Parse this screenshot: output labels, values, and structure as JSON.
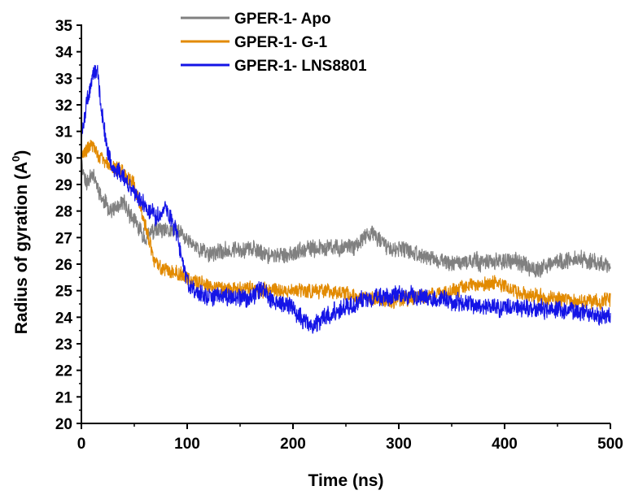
{
  "chart_data": {
    "type": "line",
    "title": "",
    "xlabel": "Time (ns)",
    "ylabel_main": "Radius of gyration (A",
    "ylabel_sup": "0",
    "ylabel_close": ")",
    "xlim": [
      0,
      500
    ],
    "ylim": [
      20,
      35
    ],
    "xticks": [
      0,
      100,
      200,
      300,
      400,
      500
    ],
    "yticks": [
      20,
      21,
      22,
      23,
      24,
      25,
      26,
      27,
      28,
      29,
      30,
      31,
      32,
      33,
      34,
      35
    ],
    "legend_position": "top-center",
    "series": [
      {
        "name": "GPER-1- Apo",
        "color": "#808080",
        "noise": 0.28,
        "seed": 11,
        "points": [
          [
            0,
            29.8
          ],
          [
            5,
            29.0
          ],
          [
            10,
            29.5
          ],
          [
            20,
            28.4
          ],
          [
            30,
            28.0
          ],
          [
            40,
            28.3
          ],
          [
            50,
            27.6
          ],
          [
            60,
            27.0
          ],
          [
            70,
            27.3
          ],
          [
            80,
            27.2
          ],
          [
            90,
            27.3
          ],
          [
            100,
            26.9
          ],
          [
            110,
            26.6
          ],
          [
            120,
            26.4
          ],
          [
            140,
            26.5
          ],
          [
            160,
            26.6
          ],
          [
            180,
            26.3
          ],
          [
            200,
            26.4
          ],
          [
            220,
            26.6
          ],
          [
            240,
            26.6
          ],
          [
            260,
            26.7
          ],
          [
            275,
            27.2
          ],
          [
            290,
            26.6
          ],
          [
            310,
            26.5
          ],
          [
            330,
            26.2
          ],
          [
            350,
            26.0
          ],
          [
            370,
            26.1
          ],
          [
            390,
            26.1
          ],
          [
            410,
            26.1
          ],
          [
            430,
            25.8
          ],
          [
            450,
            26.1
          ],
          [
            470,
            26.2
          ],
          [
            490,
            26.0
          ],
          [
            500,
            26.0
          ]
        ]
      },
      {
        "name": "GPER-1- G-1",
        "color": "#E28A00",
        "noise": 0.25,
        "seed": 29,
        "points": [
          [
            0,
            30.1
          ],
          [
            5,
            30.3
          ],
          [
            10,
            30.5
          ],
          [
            20,
            29.9
          ],
          [
            30,
            29.6
          ],
          [
            40,
            29.5
          ],
          [
            50,
            29.0
          ],
          [
            60,
            27.5
          ],
          [
            70,
            26.0
          ],
          [
            80,
            25.8
          ],
          [
            90,
            25.7
          ],
          [
            100,
            25.5
          ],
          [
            110,
            25.3
          ],
          [
            130,
            25.1
          ],
          [
            150,
            25.1
          ],
          [
            170,
            25.0
          ],
          [
            190,
            25.0
          ],
          [
            210,
            25.0
          ],
          [
            230,
            25.0
          ],
          [
            250,
            24.9
          ],
          [
            270,
            24.7
          ],
          [
            290,
            24.6
          ],
          [
            310,
            24.7
          ],
          [
            330,
            24.8
          ],
          [
            350,
            25.0
          ],
          [
            370,
            25.2
          ],
          [
            390,
            25.3
          ],
          [
            410,
            25.0
          ],
          [
            430,
            24.8
          ],
          [
            450,
            24.7
          ],
          [
            470,
            24.6
          ],
          [
            490,
            24.6
          ],
          [
            500,
            24.7
          ]
        ]
      },
      {
        "name": "GPER-1- LNS8801",
        "color": "#1414E6",
        "noise": 0.3,
        "seed": 47,
        "points": [
          [
            0,
            30.8
          ],
          [
            5,
            32.0
          ],
          [
            10,
            33.0
          ],
          [
            15,
            33.4
          ],
          [
            20,
            31.5
          ],
          [
            25,
            30.2
          ],
          [
            30,
            29.6
          ],
          [
            40,
            29.3
          ],
          [
            50,
            28.7
          ],
          [
            60,
            28.2
          ],
          [
            70,
            27.8
          ],
          [
            80,
            28.1
          ],
          [
            90,
            27.2
          ],
          [
            100,
            25.3
          ],
          [
            110,
            24.9
          ],
          [
            120,
            24.8
          ],
          [
            140,
            24.8
          ],
          [
            160,
            24.7
          ],
          [
            170,
            25.1
          ],
          [
            180,
            24.6
          ],
          [
            190,
            24.5
          ],
          [
            200,
            24.3
          ],
          [
            210,
            23.9
          ],
          [
            220,
            23.7
          ],
          [
            230,
            24.0
          ],
          [
            250,
            24.4
          ],
          [
            270,
            24.7
          ],
          [
            290,
            24.8
          ],
          [
            310,
            24.8
          ],
          [
            330,
            24.7
          ],
          [
            350,
            24.6
          ],
          [
            370,
            24.5
          ],
          [
            390,
            24.4
          ],
          [
            410,
            24.4
          ],
          [
            430,
            24.3
          ],
          [
            450,
            24.3
          ],
          [
            470,
            24.2
          ],
          [
            490,
            24.1
          ],
          [
            500,
            24.1
          ]
        ]
      }
    ]
  }
}
